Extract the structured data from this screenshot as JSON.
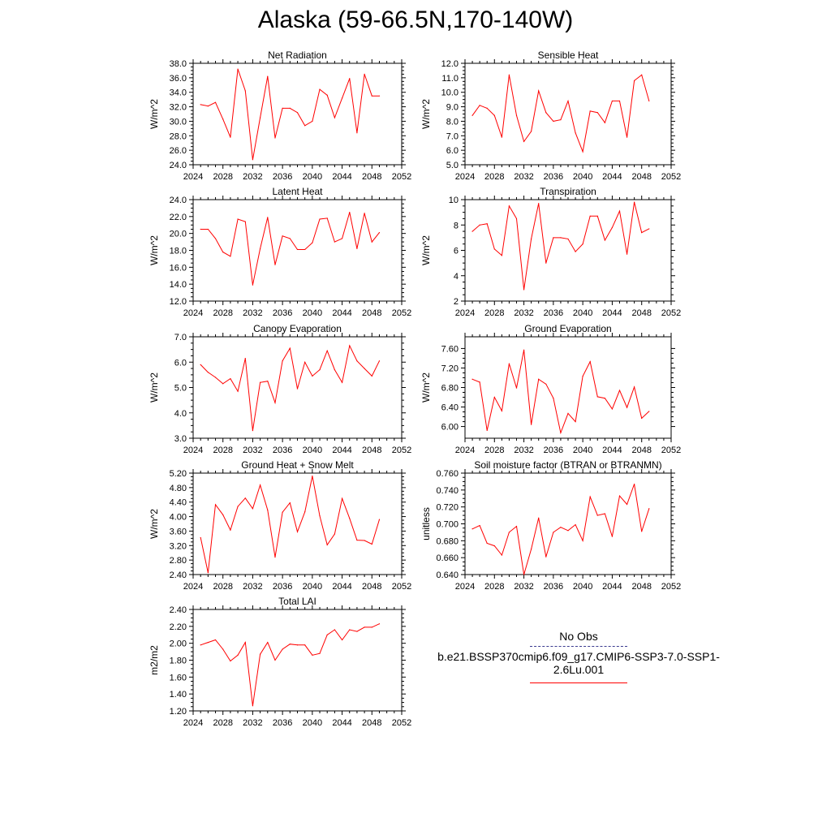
{
  "title": "Alaska (59-66.5N,170-140W)",
  "legend": {
    "obs_label": "No Obs",
    "case_label": "b.e21.BSSP370cmip6.f09_g17.CMIP6-SSP3-7.0-SSP1-2.6Lu.001",
    "obs_color": "#3b3b8f",
    "case_color": "#ff0000"
  },
  "chart_data": [
    {
      "type": "line",
      "title": "Net Radiation",
      "ylabel": "W/m^2",
      "xlim": [
        2024,
        2052
      ],
      "xticks": [
        "2024",
        "2028",
        "2032",
        "2036",
        "2040",
        "2044",
        "2048",
        "2052"
      ],
      "ylim": [
        24,
        38
      ],
      "yticks": [
        "24.0",
        "26.0",
        "28.0",
        "30.0",
        "32.0",
        "34.0",
        "36.0",
        "38.0"
      ],
      "x": [
        2025,
        2026,
        2027,
        2028,
        2029,
        2030,
        2031,
        2032,
        2033,
        2034,
        2035,
        2036,
        2037,
        2038,
        2039,
        2040,
        2041,
        2042,
        2043,
        2044,
        2045,
        2046,
        2047,
        2048,
        2049
      ],
      "series": [
        {
          "color": "#ff0000",
          "values": [
            32.3,
            32.1,
            32.6,
            30.3,
            27.8,
            37.2,
            34.2,
            24.7,
            30.5,
            36.2,
            27.7,
            31.8,
            31.8,
            31.2,
            29.4,
            30.0,
            34.4,
            33.6,
            30.5,
            33.2,
            35.9,
            28.4,
            36.5,
            33.5,
            33.5
          ]
        }
      ]
    },
    {
      "type": "line",
      "title": "Sensible Heat",
      "ylabel": "W/m^2",
      "xlim": [
        2024,
        2052
      ],
      "xticks": [
        "2024",
        "2028",
        "2032",
        "2036",
        "2040",
        "2044",
        "2048",
        "2052"
      ],
      "ylim": [
        5,
        12
      ],
      "yticks": [
        "5.0",
        "6.0",
        "7.0",
        "8.0",
        "9.0",
        "10.0",
        "11.0",
        "12.0"
      ],
      "x": [
        2025,
        2026,
        2027,
        2028,
        2029,
        2030,
        2031,
        2032,
        2033,
        2034,
        2035,
        2036,
        2037,
        2038,
        2039,
        2040,
        2041,
        2042,
        2043,
        2044,
        2045,
        2046,
        2047,
        2048,
        2049
      ],
      "series": [
        {
          "color": "#ff0000",
          "values": [
            8.4,
            9.1,
            8.9,
            8.4,
            6.9,
            11.2,
            8.4,
            6.6,
            7.3,
            10.1,
            8.6,
            8.0,
            8.1,
            9.4,
            7.2,
            5.9,
            8.7,
            8.6,
            7.9,
            9.4,
            9.4,
            6.9,
            10.8,
            11.2,
            9.4
          ]
        }
      ]
    },
    {
      "type": "line",
      "title": "Latent Heat",
      "ylabel": "W/m^2",
      "xlim": [
        2024,
        2052
      ],
      "xticks": [
        "2024",
        "2028",
        "2032",
        "2036",
        "2040",
        "2044",
        "2048",
        "2052"
      ],
      "ylim": [
        12,
        24
      ],
      "yticks": [
        "12.0",
        "14.0",
        "16.0",
        "18.0",
        "20.0",
        "22.0",
        "24.0"
      ],
      "x": [
        2025,
        2026,
        2027,
        2028,
        2029,
        2030,
        2031,
        2032,
        2033,
        2034,
        2035,
        2036,
        2037,
        2038,
        2039,
        2040,
        2041,
        2042,
        2043,
        2044,
        2045,
        2046,
        2047,
        2048,
        2049
      ],
      "series": [
        {
          "color": "#ff0000",
          "values": [
            20.5,
            20.5,
            19.4,
            17.8,
            17.3,
            21.7,
            21.4,
            13.9,
            18.2,
            21.9,
            16.3,
            19.7,
            19.4,
            18.1,
            18.1,
            18.9,
            21.7,
            21.8,
            19.0,
            19.4,
            22.5,
            18.2,
            22.4,
            19.0,
            20.1
          ]
        }
      ]
    },
    {
      "type": "line",
      "title": "Transpiration",
      "ylabel": "W/m^2",
      "xlim": [
        2024,
        2052
      ],
      "xticks": [
        "2024",
        "2028",
        "2032",
        "2036",
        "2040",
        "2044",
        "2048",
        "2052"
      ],
      "ylim": [
        2,
        10
      ],
      "yticks": [
        "2",
        "4",
        "6",
        "8",
        "10"
      ],
      "x": [
        2025,
        2026,
        2027,
        2028,
        2029,
        2030,
        2031,
        2032,
        2033,
        2034,
        2035,
        2036,
        2037,
        2038,
        2039,
        2040,
        2041,
        2042,
        2043,
        2044,
        2045,
        2046,
        2047,
        2048,
        2049
      ],
      "series": [
        {
          "color": "#ff0000",
          "values": [
            7.5,
            8.0,
            8.1,
            6.1,
            5.6,
            9.5,
            8.5,
            2.9,
            6.9,
            9.7,
            5.0,
            7.0,
            7.0,
            6.9,
            5.9,
            6.5,
            8.7,
            8.7,
            6.8,
            7.8,
            9.1,
            5.7,
            9.8,
            7.4,
            7.7
          ]
        }
      ]
    },
    {
      "type": "line",
      "title": "Canopy Evaporation",
      "ylabel": "W/m^2",
      "xlim": [
        2024,
        2052
      ],
      "xticks": [
        "2024",
        "2028",
        "2032",
        "2036",
        "2040",
        "2044",
        "2048",
        "2052"
      ],
      "ylim": [
        3,
        7
      ],
      "yticks": [
        "3.0",
        "4.0",
        "5.0",
        "6.0",
        "7.0"
      ],
      "x": [
        2025,
        2026,
        2027,
        2028,
        2029,
        2030,
        2031,
        2032,
        2033,
        2034,
        2035,
        2036,
        2037,
        2038,
        2039,
        2040,
        2041,
        2042,
        2043,
        2044,
        2045,
        2046,
        2047,
        2048,
        2049
      ],
      "series": [
        {
          "color": "#ff0000",
          "values": [
            5.9,
            5.6,
            5.4,
            5.15,
            5.35,
            4.85,
            6.15,
            3.3,
            5.2,
            5.25,
            4.4,
            6.05,
            6.55,
            4.95,
            6.0,
            5.45,
            5.7,
            6.45,
            5.7,
            5.2,
            6.65,
            6.05,
            5.75,
            5.45,
            6.05
          ]
        }
      ]
    },
    {
      "type": "line",
      "title": "Ground Evaporation",
      "ylabel": "W/m^2",
      "xlim": [
        2024,
        2052
      ],
      "xticks": [
        "2024",
        "2028",
        "2032",
        "2036",
        "2040",
        "2044",
        "2048",
        "2052"
      ],
      "ylim": [
        5.76,
        7.84
      ],
      "yticks": [
        "6.00",
        "6.40",
        "6.80",
        "7.20",
        "7.60"
      ],
      "x": [
        2025,
        2026,
        2027,
        2028,
        2029,
        2030,
        2031,
        2032,
        2033,
        2034,
        2035,
        2036,
        2037,
        2038,
        2039,
        2040,
        2041,
        2042,
        2043,
        2044,
        2045,
        2046,
        2047,
        2048,
        2049
      ],
      "series": [
        {
          "color": "#ff0000",
          "values": [
            6.97,
            6.91,
            5.92,
            6.6,
            6.32,
            7.29,
            6.79,
            7.57,
            6.04,
            6.97,
            6.87,
            6.58,
            5.87,
            6.27,
            6.1,
            7.03,
            7.33,
            6.61,
            6.58,
            6.36,
            6.74,
            6.39,
            6.81,
            6.17,
            6.31
          ]
        }
      ]
    },
    {
      "type": "line",
      "title": "Ground Heat + Snow Melt",
      "ylabel": "W/m^2",
      "xlim": [
        2024,
        2052
      ],
      "xticks": [
        "2024",
        "2028",
        "2032",
        "2036",
        "2040",
        "2044",
        "2048",
        "2052"
      ],
      "ylim": [
        2.4,
        5.2
      ],
      "yticks": [
        "2.40",
        "2.80",
        "3.20",
        "3.60",
        "4.00",
        "4.40",
        "4.80",
        "5.20"
      ],
      "x": [
        2025,
        2026,
        2027,
        2028,
        2029,
        2030,
        2031,
        2032,
        2033,
        2034,
        2035,
        2036,
        2037,
        2038,
        2039,
        2040,
        2041,
        2042,
        2043,
        2044,
        2045,
        2046,
        2047,
        2048,
        2049
      ],
      "series": [
        {
          "color": "#ff0000",
          "values": [
            3.42,
            2.45,
            4.33,
            4.05,
            3.63,
            4.28,
            4.51,
            4.22,
            4.87,
            4.18,
            2.88,
            4.12,
            4.38,
            3.58,
            4.13,
            5.12,
            4.02,
            3.22,
            3.52,
            4.5,
            3.95,
            3.35,
            3.34,
            3.24,
            3.92
          ]
        }
      ]
    },
    {
      "type": "line",
      "title": "Soil moisture factor (BTRAN or BTRANMN)",
      "ylabel": "unitless",
      "xlim": [
        2024,
        2052
      ],
      "xticks": [
        "2024",
        "2028",
        "2032",
        "2036",
        "2040",
        "2044",
        "2048",
        "2052"
      ],
      "ylim": [
        0.64,
        0.76
      ],
      "yticks": [
        "0.640",
        "0.660",
        "0.680",
        "0.700",
        "0.720",
        "0.740",
        "0.760"
      ],
      "x": [
        2025,
        2026,
        2027,
        2028,
        2029,
        2030,
        2031,
        2032,
        2033,
        2034,
        2035,
        2036,
        2037,
        2038,
        2039,
        2040,
        2041,
        2042,
        2043,
        2044,
        2045,
        2046,
        2047,
        2048,
        2049
      ],
      "series": [
        {
          "color": "#ff0000",
          "values": [
            0.694,
            0.698,
            0.677,
            0.674,
            0.663,
            0.69,
            0.697,
            0.64,
            0.67,
            0.707,
            0.661,
            0.69,
            0.696,
            0.692,
            0.699,
            0.68,
            0.732,
            0.71,
            0.712,
            0.685,
            0.733,
            0.723,
            0.747,
            0.691,
            0.718
          ]
        }
      ]
    },
    {
      "type": "line",
      "title": "Total LAI",
      "ylabel": "m2/m2",
      "xlim": [
        2024,
        2052
      ],
      "xticks": [
        "2024",
        "2028",
        "2032",
        "2036",
        "2040",
        "2044",
        "2048",
        "2052"
      ],
      "ylim": [
        1.2,
        2.4
      ],
      "yticks": [
        "1.20",
        "1.40",
        "1.60",
        "1.80",
        "2.00",
        "2.20",
        "2.40"
      ],
      "x": [
        2025,
        2026,
        2027,
        2028,
        2029,
        2030,
        2031,
        2032,
        2033,
        2034,
        2035,
        2036,
        2037,
        2038,
        2039,
        2040,
        2041,
        2042,
        2043,
        2044,
        2045,
        2046,
        2047,
        2048,
        2049
      ],
      "series": [
        {
          "color": "#ff0000",
          "values": [
            1.98,
            2.01,
            2.04,
            1.93,
            1.79,
            1.86,
            2.01,
            1.26,
            1.87,
            2.01,
            1.8,
            1.93,
            1.99,
            1.98,
            1.98,
            1.86,
            1.88,
            2.1,
            2.16,
            2.04,
            2.16,
            2.14,
            2.19,
            2.19,
            2.23
          ]
        }
      ]
    }
  ]
}
